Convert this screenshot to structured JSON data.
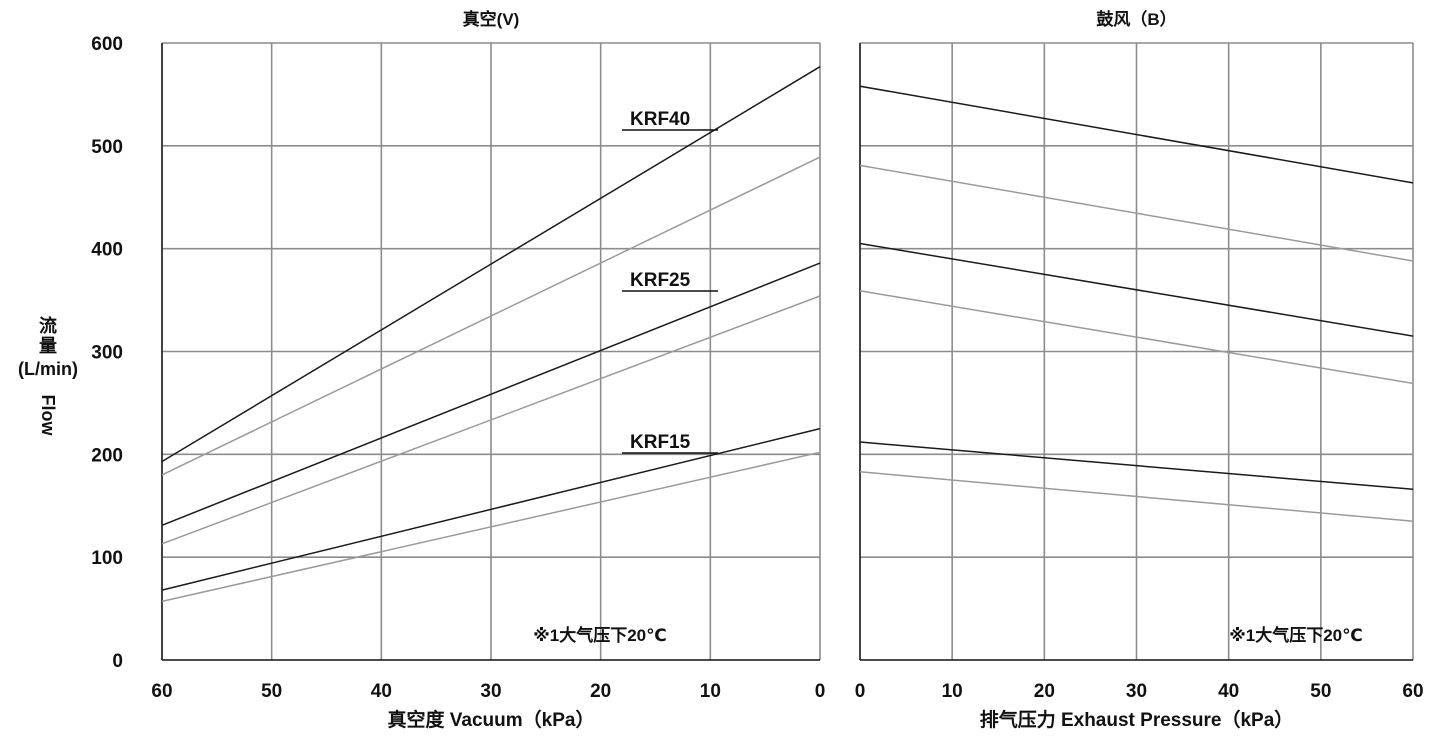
{
  "y_axis_label": {
    "chinese": "流量",
    "unit": "(L/min)",
    "english": "Flow"
  },
  "colors": {
    "dark_line": "#1a1a1a",
    "light_line": "#9a9a9a",
    "grid": "#8c8c8c",
    "text": "#111111"
  },
  "chart_data": [
    {
      "type": "line",
      "title": "真空(V)",
      "xlabel": "真空度 Vacuum（kPa）",
      "ylabel": "流量 (L/min) Flow",
      "x_ticks": [
        "60",
        "50",
        "40",
        "30",
        "20",
        "10",
        "0"
      ],
      "y_ticks": [
        "0",
        "100",
        "200",
        "300",
        "400",
        "500",
        "600"
      ],
      "xlim": [
        60,
        0
      ],
      "ylim": [
        0,
        600
      ],
      "grid": true,
      "note": "※1大气压下20℃",
      "series_labels": [
        "KRF40",
        "KRF25",
        "KRF15"
      ],
      "series": [
        {
          "name": "KRF40",
          "style": "dark",
          "x": [
            60,
            0
          ],
          "y": [
            193,
            577
          ]
        },
        {
          "name": "KRF40",
          "style": "light",
          "x": [
            60,
            0
          ],
          "y": [
            180,
            489
          ]
        },
        {
          "name": "KRF25",
          "style": "dark",
          "x": [
            60,
            0
          ],
          "y": [
            131,
            386
          ]
        },
        {
          "name": "KRF25",
          "style": "light",
          "x": [
            60,
            0
          ],
          "y": [
            113,
            354
          ]
        },
        {
          "name": "KRF15",
          "style": "dark",
          "x": [
            60,
            0
          ],
          "y": [
            68,
            225
          ]
        },
        {
          "name": "KRF15",
          "style": "light",
          "x": [
            60,
            0
          ],
          "y": [
            57,
            202
          ]
        }
      ]
    },
    {
      "type": "line",
      "title": "鼓风（B）",
      "xlabel": "排气压力 Exhaust Pressure（kPa）",
      "ylabel": "",
      "x_ticks": [
        "0",
        "10",
        "20",
        "30",
        "40",
        "50",
        "60"
      ],
      "xlim": [
        0,
        60
      ],
      "ylim": [
        0,
        600
      ],
      "grid": true,
      "note": "※1大气压下20℃",
      "series": [
        {
          "name": "KRF40",
          "style": "dark",
          "x": [
            0,
            60
          ],
          "y": [
            558,
            464
          ]
        },
        {
          "name": "KRF40",
          "style": "light",
          "x": [
            0,
            60
          ],
          "y": [
            481,
            388
          ]
        },
        {
          "name": "KRF25",
          "style": "dark",
          "x": [
            0,
            60
          ],
          "y": [
            405,
            315
          ]
        },
        {
          "name": "KRF25",
          "style": "light",
          "x": [
            0,
            60
          ],
          "y": [
            359,
            269
          ]
        },
        {
          "name": "KRF15",
          "style": "dark",
          "x": [
            0,
            60
          ],
          "y": [
            212,
            166
          ]
        },
        {
          "name": "KRF15",
          "style": "light",
          "x": [
            0,
            60
          ],
          "y": [
            183,
            135
          ]
        }
      ]
    }
  ]
}
